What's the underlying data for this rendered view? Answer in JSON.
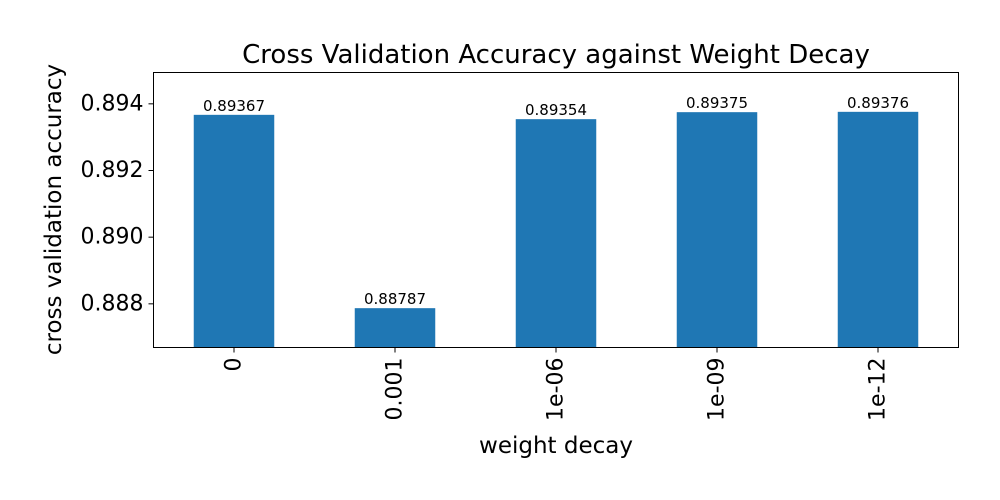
{
  "chart_data": {
    "type": "bar",
    "title": "Cross Validation Accuracy against Weight Decay",
    "xlabel": "weight decay",
    "ylabel": "cross validation accuracy",
    "categories": [
      "0",
      "0.001",
      "1e-06",
      "1e-09",
      "1e-12"
    ],
    "values": [
      0.89367,
      0.88787,
      0.89354,
      0.89375,
      0.89376
    ],
    "data_labels": [
      "0.89367",
      "0.88787",
      "0.89354",
      "0.89375",
      "0.89376"
    ],
    "ylim": [
      0.88669,
      0.89494
    ],
    "yticks": [
      0.888,
      0.89,
      0.892,
      0.894
    ],
    "ytick_labels": [
      "0.888",
      "0.890",
      "0.892",
      "0.894"
    ],
    "bar_color": "#1f77b4",
    "grid": false,
    "legend": "none"
  }
}
